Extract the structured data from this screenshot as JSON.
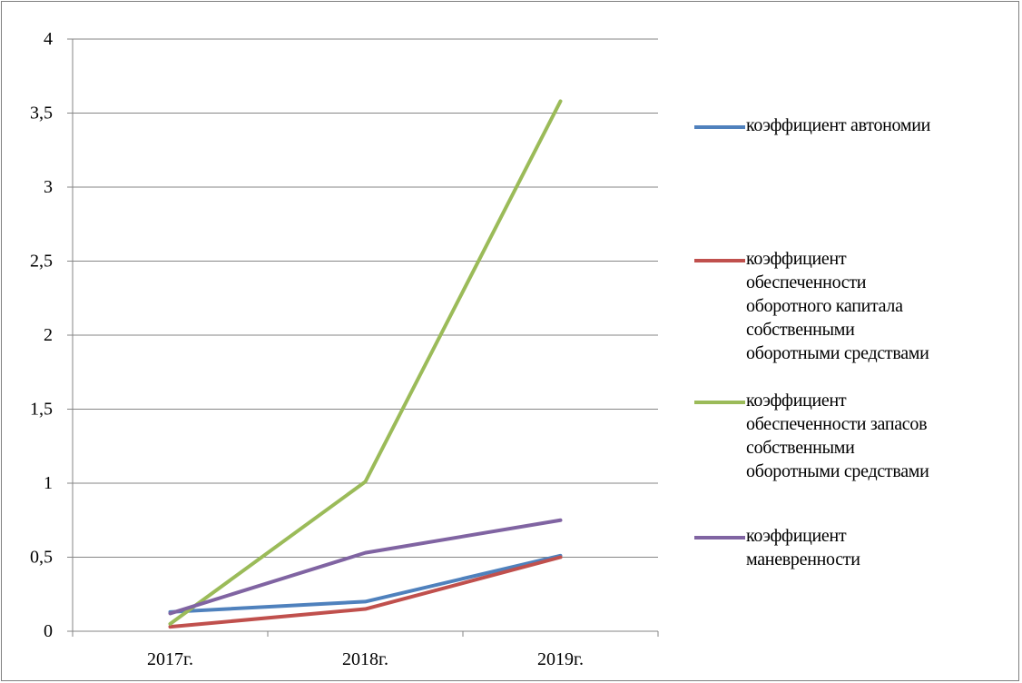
{
  "chart_data": {
    "type": "line",
    "categories": [
      "2017г.",
      "2018г.",
      "2019г."
    ],
    "y_ticks": [
      "0",
      "0,5",
      "1",
      "1,5",
      "2",
      "2,5",
      "3",
      "3,5",
      "4"
    ],
    "ylim": [
      0,
      4
    ],
    "grid": true,
    "legend_position": "right",
    "series": [
      {
        "name": "коэффициент автономии",
        "color": "#4f81bd",
        "values": [
          0.13,
          0.2,
          0.51
        ]
      },
      {
        "name": "коэффициент обеспеченности оборотного капитала собственными оборотными средствами",
        "color": "#c0504d",
        "values": [
          0.03,
          0.15,
          0.5
        ]
      },
      {
        "name": "коэффициент обеспеченности запасов собственными оборотными средствами",
        "color": "#9bbb59",
        "values": [
          0.05,
          1.01,
          3.58
        ]
      },
      {
        "name": "коэффициент маневренности",
        "color": "#8064a2",
        "values": [
          0.12,
          0.53,
          0.75
        ]
      }
    ]
  },
  "legend_lines": [
    "коэффициент автономии",
    "коэффициент\nобеспеченности\nоборотного капитала\nсобственными\nоборотными средствами",
    "коэффициент\nобеспеченности запасов\nсобственными\nоборотными средствами",
    "коэффициент\nманевренности"
  ]
}
